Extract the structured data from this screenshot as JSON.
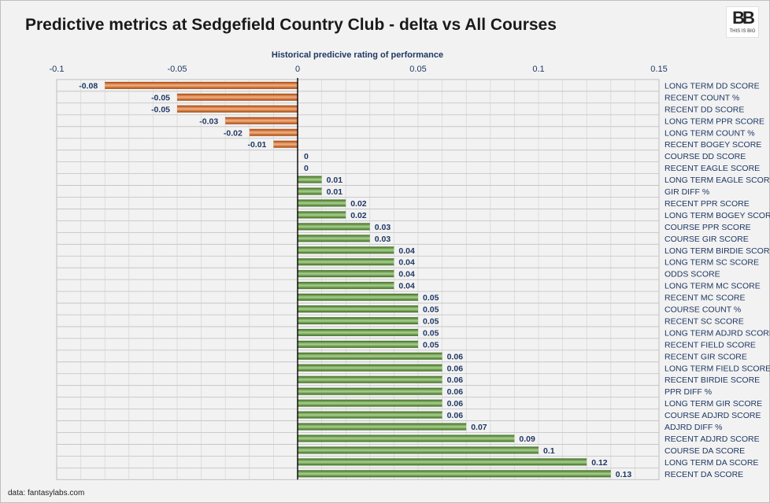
{
  "title": "Predictive metrics at Sedgefield Country Club - delta vs All Courses",
  "logo": {
    "mark": "BB",
    "subtitle": "THIS IS BIG"
  },
  "source": "data: fantasylabs.com",
  "colors": {
    "negative": "#c55a11",
    "positive": "#548235",
    "text": "#1f3864"
  },
  "chart_data": {
    "type": "bar",
    "orientation": "horizontal",
    "xlabel": "Historical predicive rating of performance",
    "xlim": [
      -0.1,
      0.15
    ],
    "xticks": [
      -0.1,
      -0.05,
      0,
      0.05,
      0.1,
      0.15
    ],
    "xtick_labels": [
      "-0.1",
      "-0.05",
      "0",
      "0.05",
      "0.1",
      "0.15"
    ],
    "x_axis_position": "top",
    "category_labels_position": "right",
    "grid": true,
    "categories": [
      "LONG TERM DD SCORE",
      "RECENT COUNT %",
      "RECENT DD SCORE",
      "LONG TERM PPR SCORE",
      "LONG TERM COUNT %",
      "RECENT BOGEY SCORE",
      "COURSE DD SCORE",
      "RECENT EAGLE SCORE",
      "LONG TERM EAGLE SCORE",
      "GIR DIFF %",
      "RECENT PPR SCORE",
      "LONG TERM BOGEY SCORE",
      "COURSE PPR SCORE",
      "COURSE GIR SCORE",
      "LONG TERM BIRDIE SCORE",
      "LONG TERM SC SCORE",
      "ODDS SCORE",
      "LONG TERM MC SCORE",
      "RECENT MC SCORE",
      "COURSE COUNT %",
      "RECENT SC SCORE",
      "LONG TERM ADJRD SCORE",
      "RECENT FIELD SCORE",
      "RECENT GIR SCORE",
      "LONG TERM FIELD SCORE",
      "RECENT BIRDIE SCORE",
      "PPR DIFF %",
      "LONG TERM GIR SCORE",
      "COURSE ADJRD SCORE",
      "ADJRD DIFF %",
      "RECENT ADJRD SCORE",
      "COURSE DA SCORE",
      "LONG TERM DA SCORE",
      "RECENT DA SCORE"
    ],
    "values": [
      -0.08,
      -0.05,
      -0.05,
      -0.03,
      -0.02,
      -0.01,
      0,
      0,
      0.01,
      0.01,
      0.02,
      0.02,
      0.03,
      0.03,
      0.04,
      0.04,
      0.04,
      0.04,
      0.05,
      0.05,
      0.05,
      0.05,
      0.05,
      0.06,
      0.06,
      0.06,
      0.06,
      0.06,
      0.06,
      0.07,
      0.09,
      0.1,
      0.12,
      0.13
    ],
    "data_labels": [
      "-0.08",
      "-0.05",
      "-0.05",
      "-0.03",
      "-0.02",
      "-0.01",
      "0",
      "0",
      "0.01",
      "0.01",
      "0.02",
      "0.02",
      "0.03",
      "0.03",
      "0.04",
      "0.04",
      "0.04",
      "0.04",
      "0.05",
      "0.05",
      "0.05",
      "0.05",
      "0.05",
      "0.06",
      "0.06",
      "0.06",
      "0.06",
      "0.06",
      "0.06",
      "0.07",
      "0.09",
      "0.1",
      "0.12",
      "0.13"
    ]
  }
}
